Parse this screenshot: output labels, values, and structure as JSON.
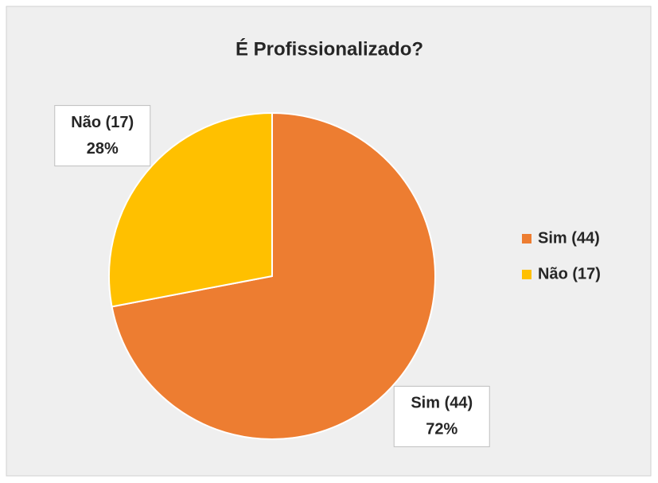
{
  "chart_data": {
    "type": "pie",
    "title": "É Profissionalizado?",
    "categories": [
      "Sim (44)",
      "Não (17)"
    ],
    "values": [
      72,
      28
    ],
    "value_labels": [
      "72%",
      "28%"
    ],
    "colors": [
      "#ed7d31",
      "#ffc000"
    ],
    "legend": "right"
  }
}
